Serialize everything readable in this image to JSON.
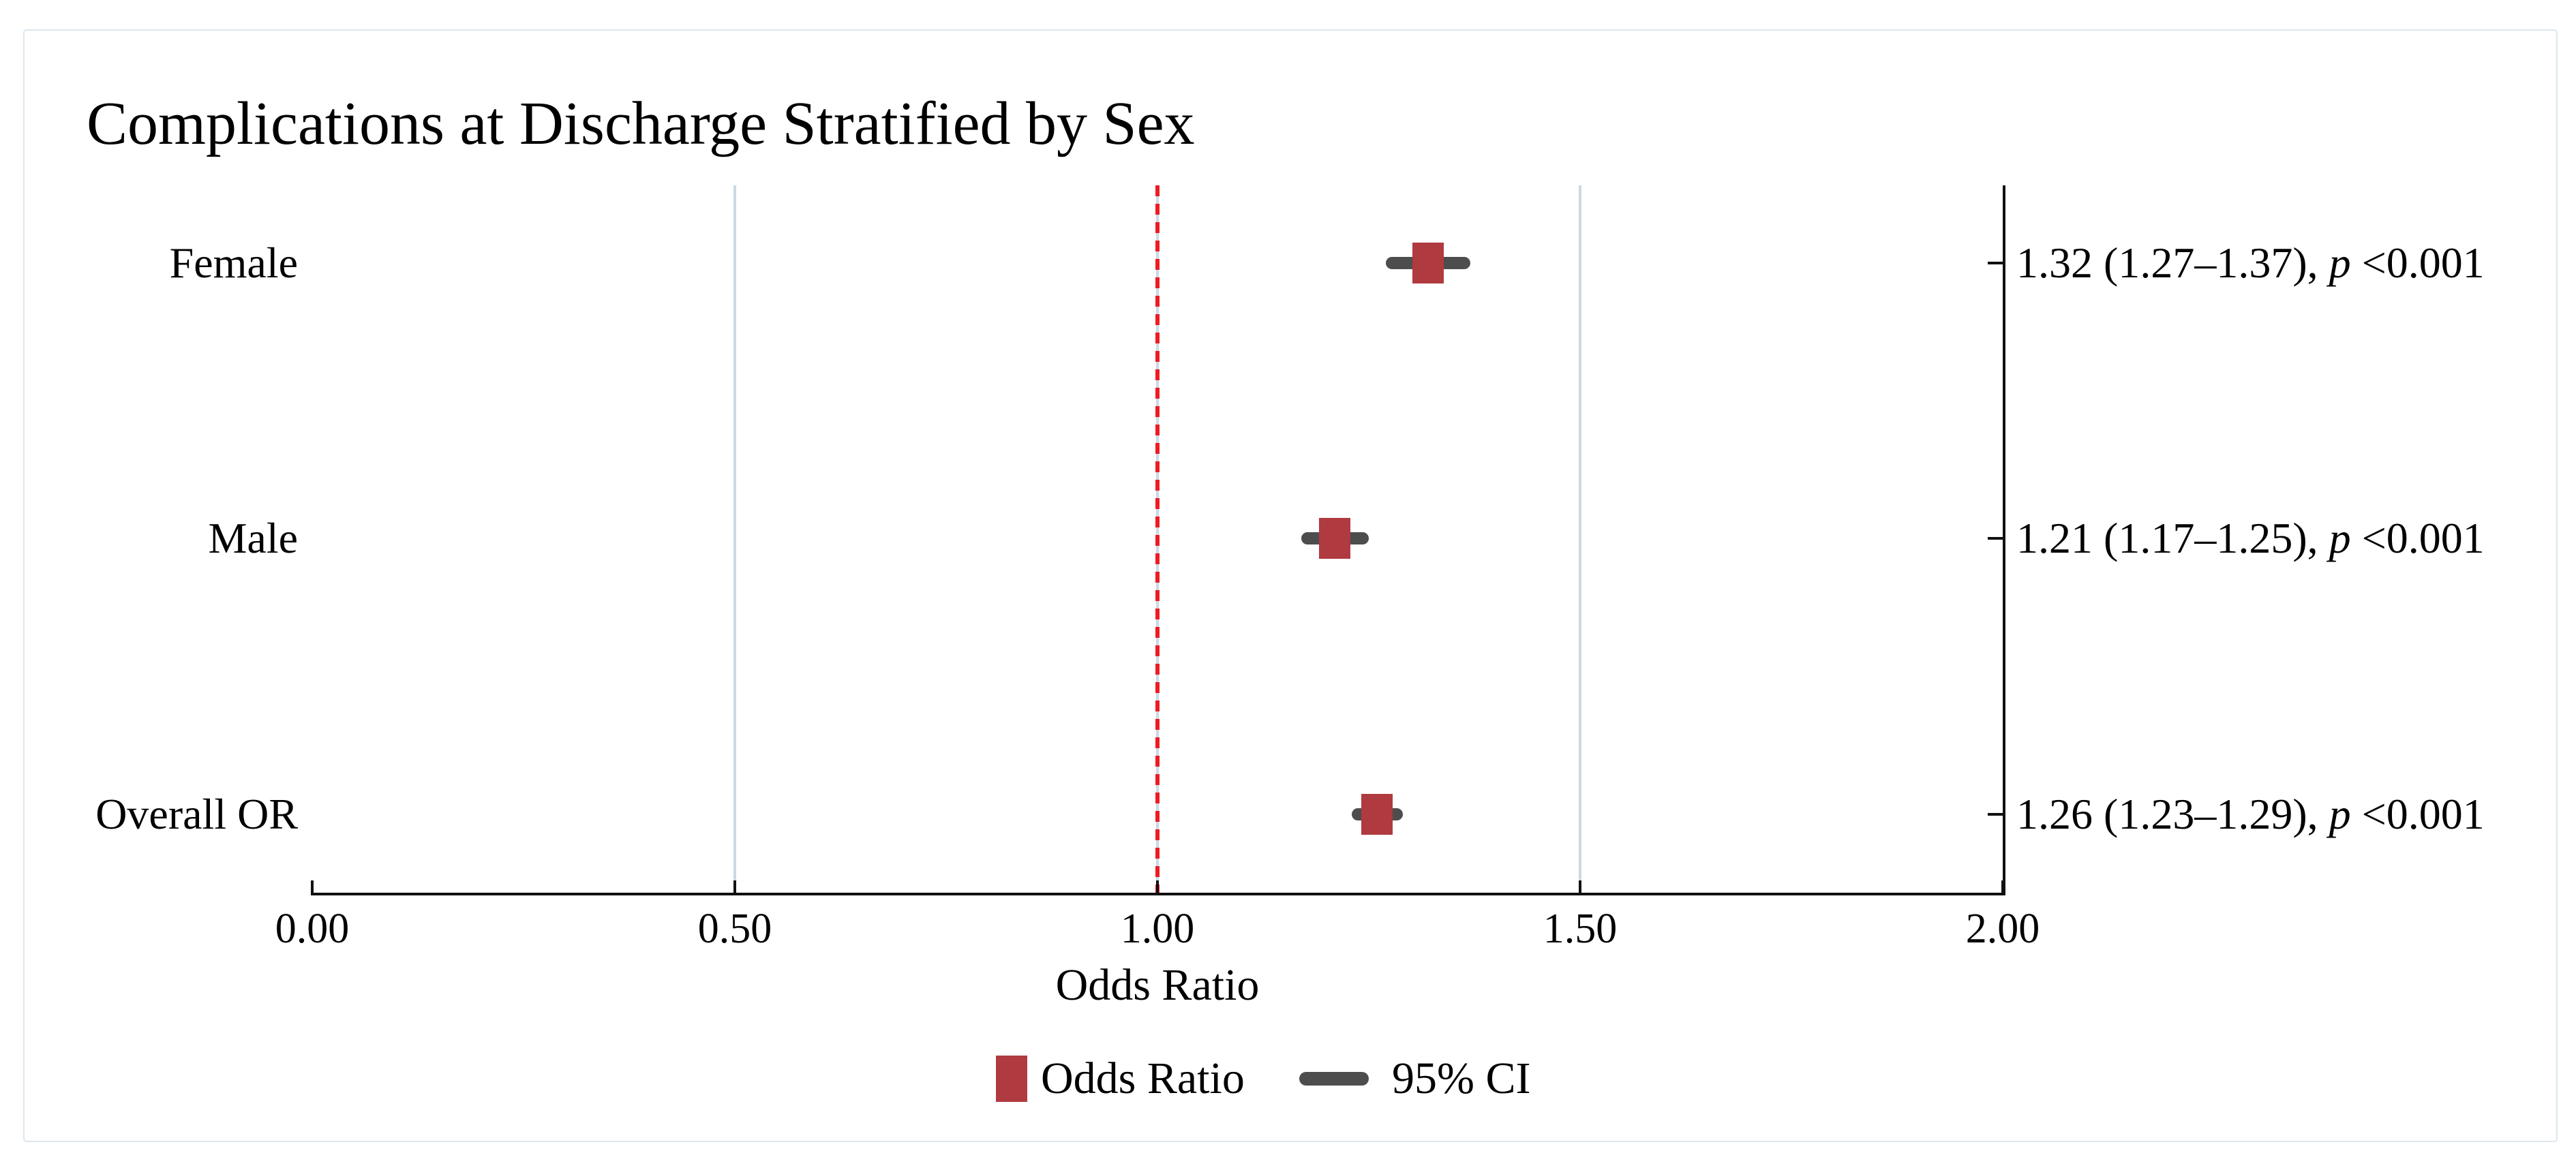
{
  "figure": {
    "title": "Complications at Discharge Stratified by Sex"
  },
  "chart_data": {
    "type": "forest",
    "title": "Complications at Discharge Stratified by Sex",
    "xlabel": "Odds Ratio",
    "xlim": [
      0.0,
      2.0
    ],
    "x_ticks": [
      "0.00",
      "0.50",
      "1.00",
      "1.50",
      "2.00"
    ],
    "x_tick_values": [
      0.0,
      0.5,
      1.0,
      1.5,
      2.0
    ],
    "grid": "vertical-only",
    "gridline_values": [
      0.5,
      1.5
    ],
    "reference_line": {
      "value": 1.0,
      "style": "dashed",
      "color": "#ed1c24"
    },
    "rows": [
      {
        "label": "Female",
        "or": 1.32,
        "ci_low": 1.27,
        "ci_high": 1.37,
        "p": "<0.001",
        "annotation_pre": "1.32 (1.27–1.37), ",
        "p_symbol": "p",
        "annotation_post": " <0.001"
      },
      {
        "label": "Male",
        "or": 1.21,
        "ci_low": 1.17,
        "ci_high": 1.25,
        "p": "<0.001",
        "annotation_pre": "1.21 (1.17–1.25), ",
        "p_symbol": "p",
        "annotation_post": " <0.001"
      },
      {
        "label": "Overall OR",
        "or": 1.26,
        "ci_low": 1.23,
        "ci_high": 1.29,
        "p": "<0.001",
        "annotation_pre": "1.26 (1.23–1.29), ",
        "p_symbol": "p",
        "annotation_post": " <0.001"
      }
    ],
    "legend": [
      {
        "swatch": "square",
        "label": "Odds Ratio"
      },
      {
        "swatch": "line",
        "label": "95% CI"
      }
    ],
    "legend_position": "bottom",
    "colors": {
      "marker": "#af3a40",
      "ci_bar": "#4d4d4d",
      "gridline": "#c9d9e6",
      "reference_line": "#ed1c24",
      "axis": "#111111",
      "card_border": "#dde7ee"
    }
  }
}
